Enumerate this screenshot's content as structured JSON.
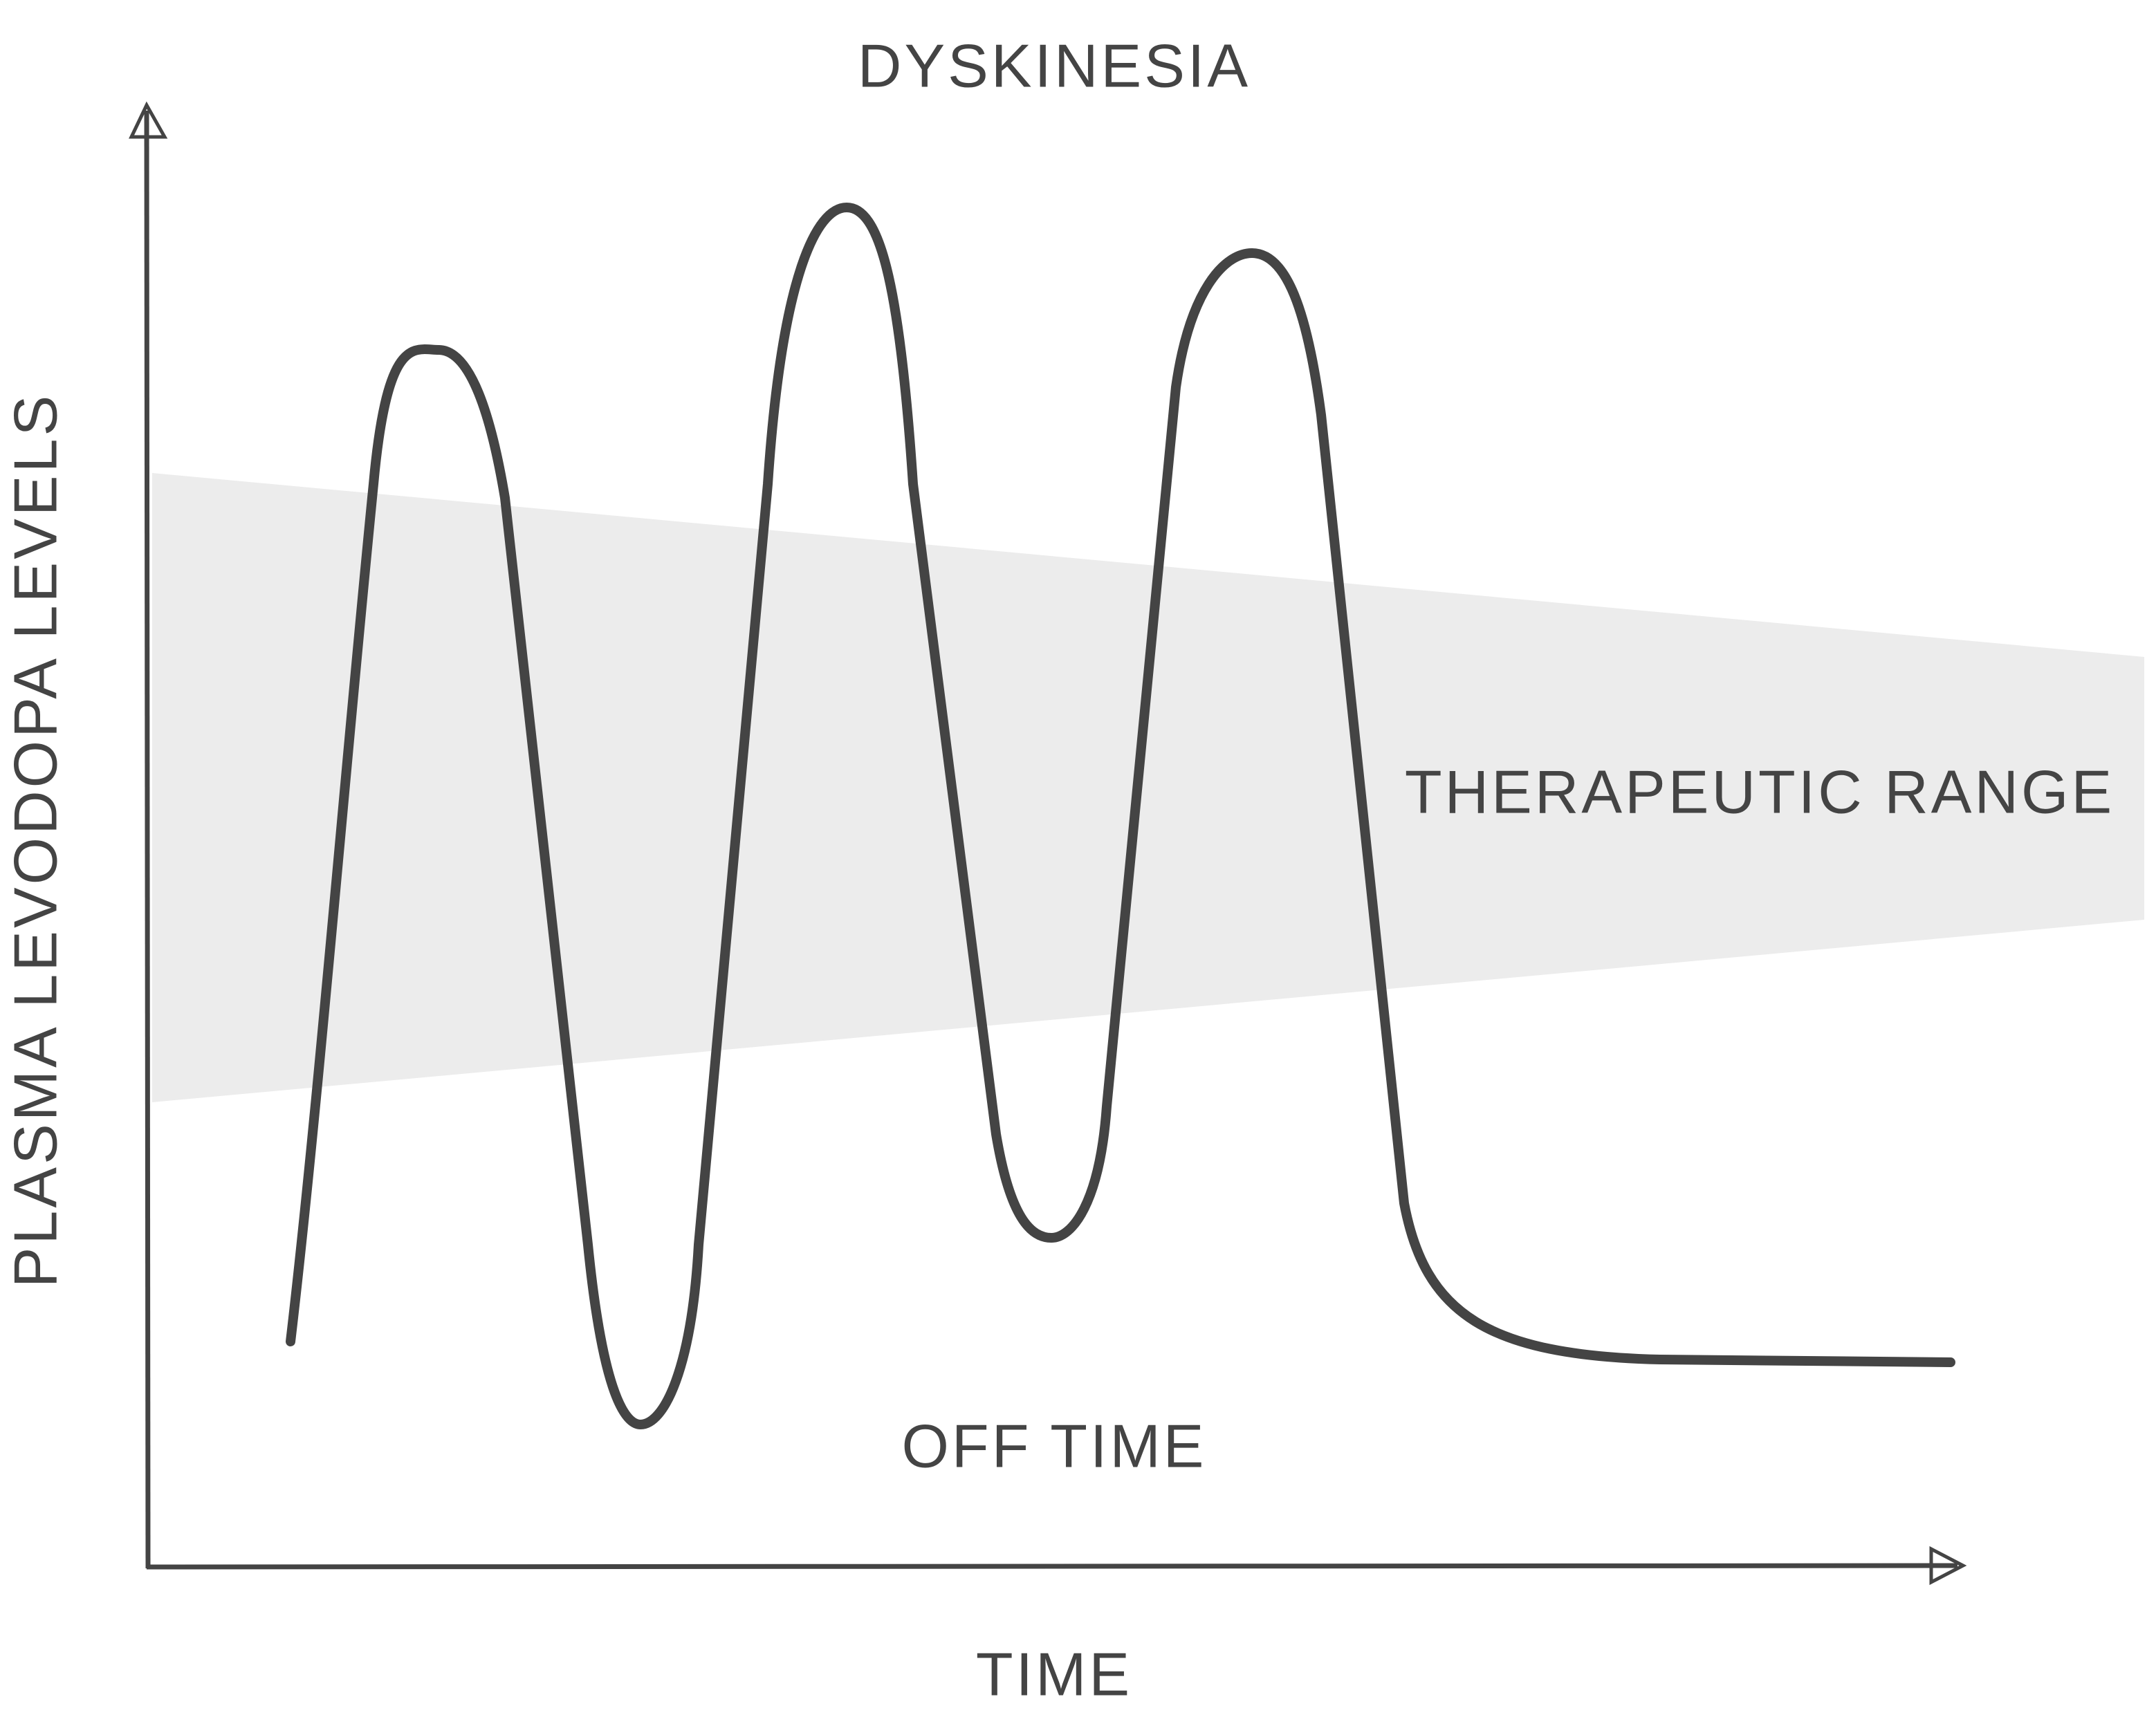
{
  "title_top": "DYSKINESIA",
  "band_label": "THERAPEUTIC RANGE",
  "bottom_label": "OFF TIME",
  "x_axis_label": "TIME",
  "y_axis_label": "PLASMA LEVODOPA LEVELS"
}
